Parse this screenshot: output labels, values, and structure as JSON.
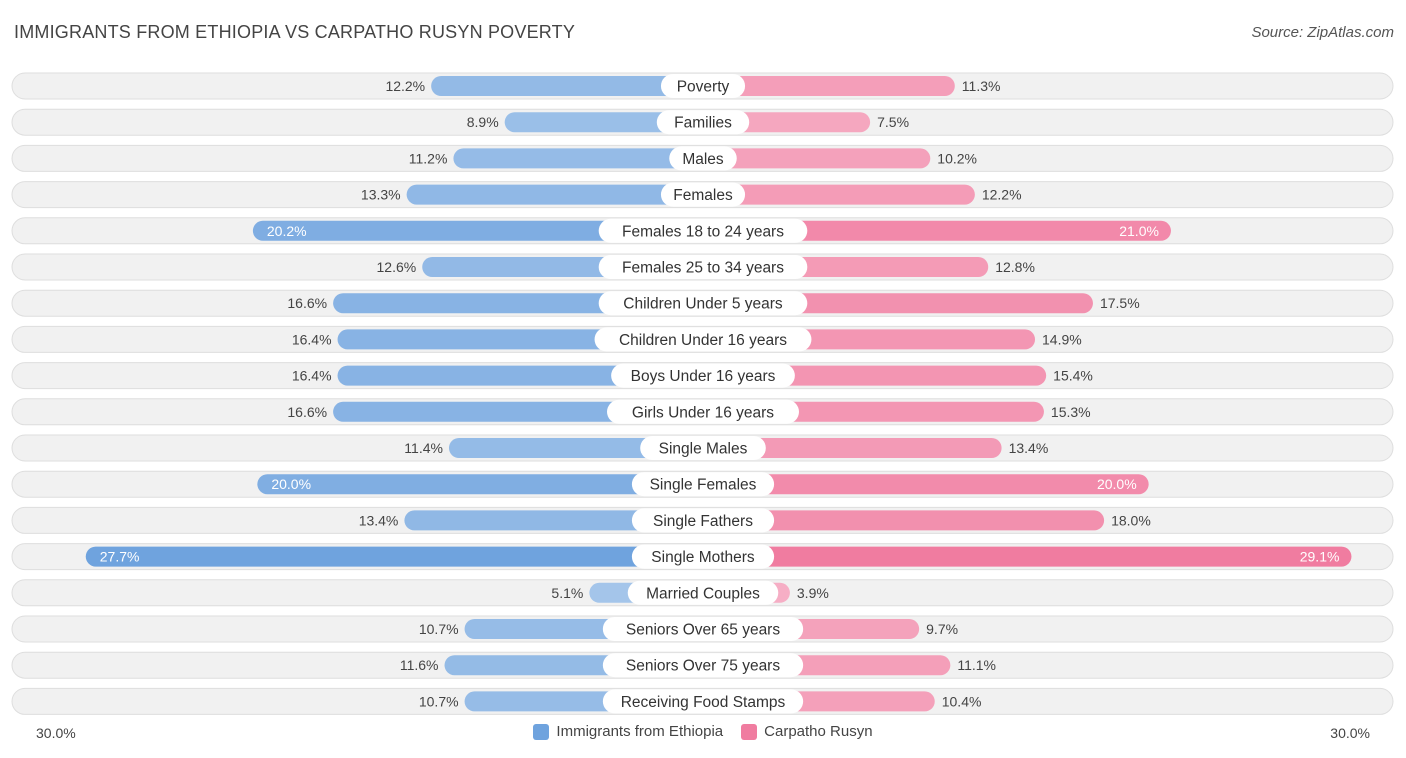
{
  "header": {
    "title": "IMMIGRANTS FROM ETHIOPIA VS CARPATHO RUSYN POVERTY",
    "source": "Source: ZipAtlas.com"
  },
  "chart_data": {
    "type": "bar",
    "orientation": "horizontal-diverging",
    "title": "IMMIGRANTS FROM ETHIOPIA VS CARPATHO RUSYN POVERTY",
    "unit": "%",
    "xlim": [
      0,
      30
    ],
    "axis_labels": {
      "left": "30.0%",
      "right": "30.0%"
    },
    "categories": [
      "Poverty",
      "Families",
      "Males",
      "Females",
      "Females 18 to 24 years",
      "Females 25 to 34 years",
      "Children Under 5 years",
      "Children Under 16 years",
      "Boys Under 16 years",
      "Girls Under 16 years",
      "Single Males",
      "Single Females",
      "Single Fathers",
      "Single Mothers",
      "Married Couples",
      "Seniors Over 65 years",
      "Seniors Over 75 years",
      "Receiving Food Stamps"
    ],
    "series": [
      {
        "name": "Immigrants from Ethiopia",
        "color": "#6fa3de",
        "values": [
          12.2,
          8.9,
          11.2,
          13.3,
          20.2,
          12.6,
          16.6,
          16.4,
          16.4,
          16.6,
          11.4,
          20.0,
          13.4,
          27.7,
          5.1,
          10.7,
          11.6,
          10.7
        ],
        "labels": [
          "12.2%",
          "8.9%",
          "11.2%",
          "13.3%",
          "20.2%",
          "12.6%",
          "16.6%",
          "16.4%",
          "16.4%",
          "16.6%",
          "11.4%",
          "20.0%",
          "13.4%",
          "27.7%",
          "5.1%",
          "10.7%",
          "11.6%",
          "10.7%"
        ]
      },
      {
        "name": "Carpatho Rusyn",
        "color": "#f07ca0",
        "values": [
          11.3,
          7.5,
          10.2,
          12.2,
          21.0,
          12.8,
          17.5,
          14.9,
          15.4,
          15.3,
          13.4,
          20.0,
          18.0,
          29.1,
          3.9,
          9.7,
          11.1,
          10.4
        ],
        "labels": [
          "11.3%",
          "7.5%",
          "10.2%",
          "12.2%",
          "21.0%",
          "12.8%",
          "17.5%",
          "14.9%",
          "15.4%",
          "15.3%",
          "13.4%",
          "20.0%",
          "18.0%",
          "29.1%",
          "3.9%",
          "9.7%",
          "11.1%",
          "10.4%"
        ]
      }
    ],
    "legend": [
      "Immigrants from Ethiopia",
      "Carpatho Rusyn"
    ]
  }
}
